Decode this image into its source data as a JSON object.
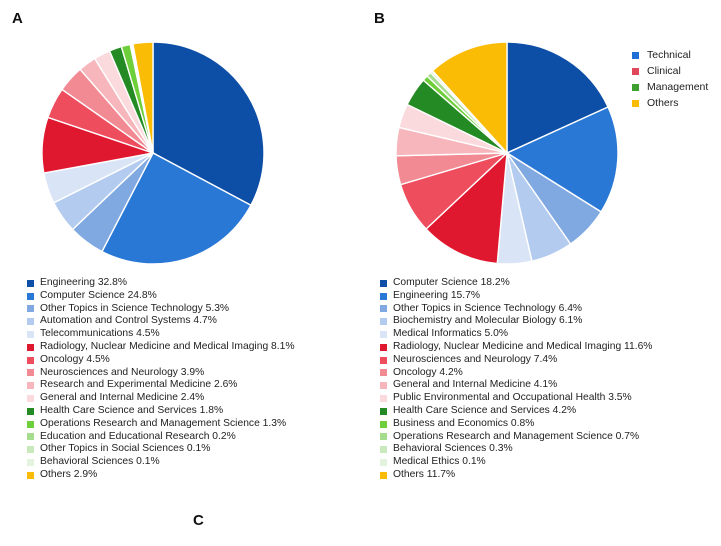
{
  "panels": {
    "a": "A",
    "b": "B",
    "c": "C"
  },
  "group_legend": [
    {
      "label": "Technical",
      "color": "#1f6fd6"
    },
    {
      "label": "Clinical",
      "color": "#e0475a"
    },
    {
      "label": "Management",
      "color": "#3da02e"
    },
    {
      "label": "Others",
      "color": "#fbbc05"
    }
  ],
  "chart_data": [
    {
      "type": "pie",
      "panel": "A",
      "slices": [
        {
          "label": "Engineering 32.8%",
          "value": 32.8,
          "color": "#0d4ea6"
        },
        {
          "label": "Computer Science 24.8%",
          "value": 24.8,
          "color": "#2a78d6"
        },
        {
          "label": "Other Topics in Science Technology 5.3%",
          "value": 5.3,
          "color": "#7fa9e0"
        },
        {
          "label": "Automation and Control Systems 4.7%",
          "value": 4.7,
          "color": "#b3cbef"
        },
        {
          "label": "Telecommunications 4.5%",
          "value": 4.5,
          "color": "#d9e4f6"
        },
        {
          "label": "Radiology, Nuclear Medicine and Medical Imaging 8.1%",
          "value": 8.1,
          "color": "#e0182f"
        },
        {
          "label": "Oncology 4.5%",
          "value": 4.5,
          "color": "#ee4d5e"
        },
        {
          "label": "Neurosciences and Neurology 3.9%",
          "value": 3.9,
          "color": "#f28a93"
        },
        {
          "label": "Research and Experimental Medicine 2.6%",
          "value": 2.6,
          "color": "#f6b6bc"
        },
        {
          "label": "General and Internal Medicine 2.4%",
          "value": 2.4,
          "color": "#fadadd"
        },
        {
          "label": "Health Care Science and Services 1.8%",
          "value": 1.8,
          "color": "#238a24"
        },
        {
          "label": "Operations Research and Management Science 1.3%",
          "value": 1.3,
          "color": "#6fcf3a"
        },
        {
          "label": "Education and Educational Research 0.2%",
          "value": 0.2,
          "color": "#a6dc8e"
        },
        {
          "label": "Other Topics in Social Sciences 0.1%",
          "value": 0.1,
          "color": "#c9e9bd"
        },
        {
          "label": "Behavioral Sciences 0.1%",
          "value": 0.1,
          "color": "#e4f3dd"
        },
        {
          "label": "Others 2.9%",
          "value": 2.9,
          "color": "#fbbc05"
        }
      ]
    },
    {
      "type": "pie",
      "panel": "B",
      "slices": [
        {
          "label": "Computer Science 18.2%",
          "value": 18.2,
          "color": "#0d4ea6"
        },
        {
          "label": "Engineering 15.7%",
          "value": 15.7,
          "color": "#2a78d6"
        },
        {
          "label": "Other Topics in Science Technology 6.4%",
          "value": 6.4,
          "color": "#7fa9e0"
        },
        {
          "label": "Biochemistry and Molecular Biology 6.1%",
          "value": 6.1,
          "color": "#b3cbef"
        },
        {
          "label": "Medical Informatics 5.0%",
          "value": 5.0,
          "color": "#d9e4f6"
        },
        {
          "label": "Radiology, Nuclear Medicine and Medical Imaging 11.6%",
          "value": 11.6,
          "color": "#e0182f"
        },
        {
          "label": "Neurosciences and Neurology 7.4%",
          "value": 7.4,
          "color": "#ee4d5e"
        },
        {
          "label": "Oncology 4.2%",
          "value": 4.2,
          "color": "#f28a93"
        },
        {
          "label": "General and Internal Medicine 4.1%",
          "value": 4.1,
          "color": "#f6b6bc"
        },
        {
          "label": "Public Environmental and Occupational Health 3.5%",
          "value": 3.5,
          "color": "#fadadd"
        },
        {
          "label": "Health Care Science and Services 4.2%",
          "value": 4.2,
          "color": "#238a24"
        },
        {
          "label": "Business and Economics 0.8%",
          "value": 0.8,
          "color": "#6fcf3a"
        },
        {
          "label": "Operations Research and Management Science 0.7%",
          "value": 0.7,
          "color": "#a6dc8e"
        },
        {
          "label": "Behavioral Sciences 0.3%",
          "value": 0.3,
          "color": "#c9e9bd"
        },
        {
          "label": "Medical Ethics 0.1%",
          "value": 0.1,
          "color": "#e4f3dd"
        },
        {
          "label": "Others 11.7%",
          "value": 11.7,
          "color": "#fbbc05"
        }
      ]
    }
  ]
}
